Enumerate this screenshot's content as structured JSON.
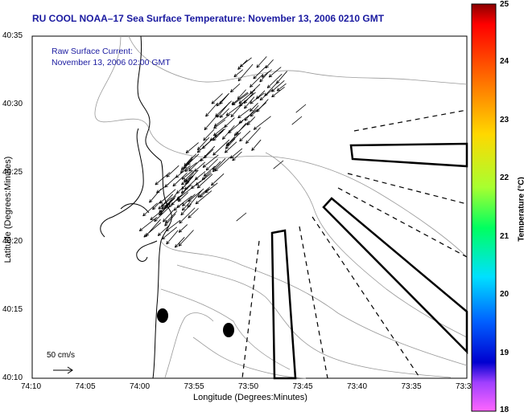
{
  "title": "RU COOL  NOAA–17  Sea Surface Temperature:  November 13, 2006 0210 GMT",
  "current_label": "Raw Surface Current:",
  "current_time": "November 13, 2006 02:00 GMT",
  "xlabel": "Longitude (Degrees:Minutes)",
  "ylabel": "Latitude (Degrees:Minutes)",
  "x_ticks": [
    "74:10",
    "74:05",
    "74:00",
    "73:55",
    "73:50",
    "73:45",
    "73:40",
    "73:35",
    "73:3"
  ],
  "y_ticks": [
    "40:35",
    "40:30",
    "40:25",
    "40:20",
    "40:15",
    "40:10"
  ],
  "scale_label": "50 cm/s",
  "colorbar": {
    "label": "Temperature (°C)",
    "ticks": [
      "25",
      "24",
      "23",
      "22",
      "21",
      "20",
      "19",
      "18"
    ],
    "range": [
      18,
      25
    ]
  },
  "colors": {
    "title": "#1a1aa0",
    "land_outline": "#000000",
    "contours": "#888888"
  }
}
